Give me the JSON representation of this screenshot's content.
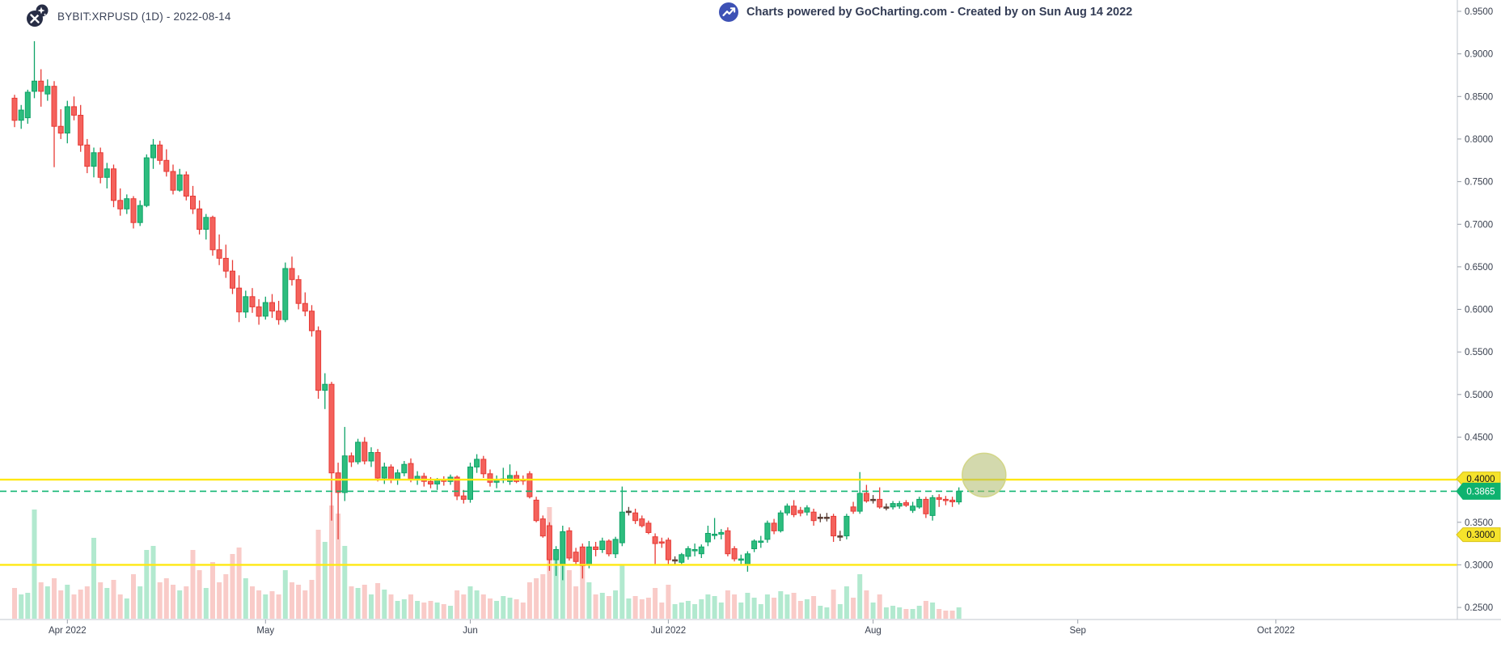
{
  "header": {
    "symbol_title": "BYBIT:XRPUSD (1D) - 2022-08-14",
    "watermark_text": "Charts powered by GoCharting.com - Created by  on Sun Aug 14 2022"
  },
  "colors": {
    "candle_up": "#2DBD7E",
    "candle_up_border": "#0FA368",
    "candle_down": "#F4625C",
    "candle_down_border": "#E73B36",
    "doji_dark": "#5D4037",
    "vol_up": "#B2E9CF",
    "vol_down": "#F9CBC8",
    "level_yellow": "#FFE812",
    "tag_yellow_bg": "#F6E32B",
    "tag_yellow_border": "#D9C416",
    "last_price_green": "#12B673",
    "tag_green_bg": "#0EB26F",
    "axis_text": "#3A4150",
    "axis_line": "#C2C7CF",
    "tick_line": "#9AA0AA",
    "header_text": "#333C55",
    "gocharting_blue": "#3D51B5",
    "logo_navy": "#272D45",
    "blob_fill": "rgba(174,186,106,0.55)",
    "blob_stroke": "rgba(208,212,128,0.9)"
  },
  "chart_data": {
    "type": "candlestick",
    "symbol": "BYBIT:XRPUSD",
    "timeframe": "1D",
    "chart_date": "2022-08-14",
    "start_date": "2022-03-24",
    "last_price": "0.3865",
    "price_axis": {
      "min": 0.25,
      "max": 0.95,
      "step": 0.05,
      "tick_labels": [
        "0.9500",
        "0.9000",
        "0.8500",
        "0.8000",
        "0.7500",
        "0.7000",
        "0.6500",
        "0.6000",
        "0.5500",
        "0.5000",
        "0.4500",
        "0.4000",
        "0.3500",
        "0.3000",
        "0.2500"
      ]
    },
    "time_axis": {
      "labels": [
        {
          "text": "Apr 2022",
          "day": 8
        },
        {
          "text": "May",
          "day": 38
        },
        {
          "text": "Jun",
          "day": 69
        },
        {
          "text": "Jul 2022",
          "day": 99
        },
        {
          "text": "Aug",
          "day": 130
        },
        {
          "text": "Sep",
          "day": 161
        },
        {
          "text": "Oct 2022",
          "day": 191
        }
      ]
    },
    "levels": [
      {
        "name": "resistance",
        "price": 0.4,
        "style": "solid",
        "color_key": "level_yellow",
        "tag": "0.4000",
        "tag_price": 0.401,
        "tag_kind": "yellow"
      },
      {
        "name": "support",
        "price": 0.3,
        "style": "solid",
        "color_key": "level_yellow",
        "tag": "0.3000",
        "tag_price": 0.3355,
        "tag_kind": "yellow"
      },
      {
        "name": "last-price",
        "price": 0.3865,
        "style": "dashed",
        "color_key": "last_price_green",
        "tag": "0.3865",
        "tag_price": 0.3865,
        "tag_kind": "green"
      }
    ],
    "highlight_circle": {
      "day_center": 146.8,
      "price_center": 0.4055,
      "radius_px": 27
    },
    "candles": [
      [
        0.848,
        0.852,
        0.814,
        0.822,
        38
      ],
      [
        0.822,
        0.84,
        0.812,
        0.834,
        30
      ],
      [
        0.825,
        0.858,
        0.818,
        0.855,
        32
      ],
      [
        0.856,
        0.915,
        0.848,
        0.868,
        135
      ],
      [
        0.868,
        0.882,
        0.838,
        0.856,
        45
      ],
      [
        0.853,
        0.87,
        0.845,
        0.862,
        40
      ],
      [
        0.862,
        0.868,
        0.767,
        0.815,
        50
      ],
      [
        0.815,
        0.835,
        0.8,
        0.807,
        35
      ],
      [
        0.807,
        0.845,
        0.795,
        0.838,
        42
      ],
      [
        0.838,
        0.85,
        0.822,
        0.828,
        30
      ],
      [
        0.828,
        0.84,
        0.785,
        0.793,
        36
      ],
      [
        0.793,
        0.8,
        0.76,
        0.768,
        40
      ],
      [
        0.768,
        0.79,
        0.755,
        0.784,
        100
      ],
      [
        0.784,
        0.79,
        0.748,
        0.755,
        45
      ],
      [
        0.755,
        0.772,
        0.742,
        0.765,
        38
      ],
      [
        0.765,
        0.77,
        0.72,
        0.728,
        48
      ],
      [
        0.728,
        0.742,
        0.71,
        0.718,
        30
      ],
      [
        0.718,
        0.735,
        0.712,
        0.73,
        25
      ],
      [
        0.73,
        0.733,
        0.695,
        0.702,
        55
      ],
      [
        0.702,
        0.728,
        0.698,
        0.722,
        40
      ],
      [
        0.722,
        0.782,
        0.72,
        0.778,
        85
      ],
      [
        0.778,
        0.8,
        0.765,
        0.793,
        90
      ],
      [
        0.793,
        0.798,
        0.77,
        0.775,
        45
      ],
      [
        0.775,
        0.788,
        0.756,
        0.762,
        50
      ],
      [
        0.762,
        0.77,
        0.735,
        0.74,
        42
      ],
      [
        0.74,
        0.765,
        0.738,
        0.758,
        35
      ],
      [
        0.758,
        0.762,
        0.728,
        0.733,
        40
      ],
      [
        0.733,
        0.745,
        0.712,
        0.718,
        85
      ],
      [
        0.718,
        0.728,
        0.688,
        0.694,
        60
      ],
      [
        0.694,
        0.712,
        0.682,
        0.708,
        38
      ],
      [
        0.708,
        0.71,
        0.663,
        0.67,
        70
      ],
      [
        0.67,
        0.688,
        0.652,
        0.66,
        45
      ],
      [
        0.66,
        0.676,
        0.637,
        0.645,
        55
      ],
      [
        0.645,
        0.658,
        0.618,
        0.625,
        80
      ],
      [
        0.625,
        0.64,
        0.585,
        0.597,
        88
      ],
      [
        0.597,
        0.622,
        0.59,
        0.615,
        50
      ],
      [
        0.615,
        0.625,
        0.596,
        0.603,
        40
      ],
      [
        0.603,
        0.612,
        0.582,
        0.592,
        35
      ],
      [
        0.592,
        0.615,
        0.588,
        0.608,
        30
      ],
      [
        0.608,
        0.618,
        0.59,
        0.598,
        34
      ],
      [
        0.598,
        0.61,
        0.582,
        0.588,
        30
      ],
      [
        0.588,
        0.655,
        0.585,
        0.648,
        60
      ],
      [
        0.648,
        0.662,
        0.628,
        0.635,
        45
      ],
      [
        0.635,
        0.64,
        0.6,
        0.607,
        42
      ],
      [
        0.607,
        0.62,
        0.592,
        0.598,
        35
      ],
      [
        0.598,
        0.605,
        0.568,
        0.575,
        48
      ],
      [
        0.575,
        0.58,
        0.495,
        0.505,
        110
      ],
      [
        0.505,
        0.525,
        0.483,
        0.512,
        95
      ],
      [
        0.512,
        0.515,
        0.352,
        0.408,
        140
      ],
      [
        0.408,
        0.42,
        0.33,
        0.385,
        130
      ],
      [
        0.385,
        0.462,
        0.375,
        0.428,
        90
      ],
      [
        0.428,
        0.432,
        0.415,
        0.421,
        40
      ],
      [
        0.421,
        0.448,
        0.418,
        0.444,
        38
      ],
      [
        0.444,
        0.45,
        0.418,
        0.422,
        42
      ],
      [
        0.422,
        0.438,
        0.415,
        0.432,
        30
      ],
      [
        0.432,
        0.436,
        0.398,
        0.402,
        44
      ],
      [
        0.402,
        0.42,
        0.395,
        0.415,
        36
      ],
      [
        0.415,
        0.418,
        0.396,
        0.4,
        30
      ],
      [
        0.4,
        0.412,
        0.394,
        0.408,
        22
      ],
      [
        0.408,
        0.422,
        0.404,
        0.418,
        24
      ],
      [
        0.419,
        0.425,
        0.397,
        0.401,
        30
      ],
      [
        0.401,
        0.41,
        0.394,
        0.404,
        22
      ],
      [
        0.404,
        0.408,
        0.392,
        0.398,
        20
      ],
      [
        0.398,
        0.403,
        0.39,
        0.395,
        22
      ],
      [
        0.395,
        0.402,
        0.388,
        0.4,
        20
      ],
      [
        0.4,
        0.404,
        0.393,
        0.398,
        18
      ],
      [
        0.398,
        0.406,
        0.394,
        0.403,
        16
      ],
      [
        0.403,
        0.405,
        0.376,
        0.381,
        35
      ],
      [
        0.381,
        0.388,
        0.372,
        0.377,
        30
      ],
      [
        0.377,
        0.42,
        0.373,
        0.415,
        40
      ],
      [
        0.415,
        0.43,
        0.408,
        0.424,
        35
      ],
      [
        0.424,
        0.428,
        0.402,
        0.407,
        30
      ],
      [
        0.407,
        0.412,
        0.392,
        0.397,
        25
      ],
      [
        0.397,
        0.405,
        0.39,
        0.4,
        22
      ],
      [
        0.4,
        0.414,
        0.396,
        0.401,
        28
      ],
      [
        0.398,
        0.418,
        0.394,
        0.405,
        26
      ],
      [
        0.405,
        0.41,
        0.396,
        0.398,
        24
      ],
      [
        0.4,
        0.405,
        0.394,
        0.399,
        20
      ],
      [
        0.407,
        0.41,
        0.378,
        0.38,
        45
      ],
      [
        0.376,
        0.38,
        0.35,
        0.352,
        50
      ],
      [
        0.354,
        0.358,
        0.332,
        0.334,
        55
      ],
      [
        0.346,
        0.35,
        0.293,
        0.306,
        138
      ],
      [
        0.306,
        0.322,
        0.287,
        0.318,
        80
      ],
      [
        0.3,
        0.346,
        0.282,
        0.339,
        90
      ],
      [
        0.34,
        0.344,
        0.305,
        0.308,
        60
      ],
      [
        0.315,
        0.32,
        0.3,
        0.304,
        40
      ],
      [
        0.321,
        0.325,
        0.284,
        0.299,
        65
      ],
      [
        0.3,
        0.328,
        0.296,
        0.321,
        45
      ],
      [
        0.321,
        0.327,
        0.31,
        0.318,
        30
      ],
      [
        0.318,
        0.332,
        0.314,
        0.328,
        32
      ],
      [
        0.328,
        0.33,
        0.31,
        0.313,
        28
      ],
      [
        0.313,
        0.333,
        0.308,
        0.33,
        35
      ],
      [
        0.326,
        0.392,
        0.322,
        0.362,
        67
      ],
      [
        0.362,
        0.368,
        0.358,
        0.363,
        25,
        1
      ],
      [
        0.361,
        0.366,
        0.348,
        0.352,
        28
      ],
      [
        0.354,
        0.358,
        0.344,
        0.346,
        24
      ],
      [
        0.349,
        0.352,
        0.336,
        0.338,
        26
      ],
      [
        0.333,
        0.337,
        0.299,
        0.325,
        38
      ],
      [
        0.327,
        0.332,
        0.32,
        0.326,
        20
      ],
      [
        0.329,
        0.332,
        0.299,
        0.306,
        42
      ],
      [
        0.306,
        0.31,
        0.3,
        0.306,
        18,
        1
      ],
      [
        0.303,
        0.314,
        0.3,
        0.312,
        20
      ],
      [
        0.31,
        0.322,
        0.306,
        0.319,
        22
      ],
      [
        0.318,
        0.325,
        0.31,
        0.318,
        18
      ],
      [
        0.313,
        0.324,
        0.308,
        0.321,
        24
      ],
      [
        0.327,
        0.346,
        0.322,
        0.337,
        30
      ],
      [
        0.336,
        0.355,
        0.33,
        0.336,
        28
      ],
      [
        0.336,
        0.342,
        0.33,
        0.338,
        20
      ],
      [
        0.34,
        0.344,
        0.31,
        0.313,
        35
      ],
      [
        0.319,
        0.322,
        0.304,
        0.307,
        30
      ],
      [
        0.307,
        0.312,
        0.3,
        0.307,
        20
      ],
      [
        0.301,
        0.316,
        0.292,
        0.313,
        32
      ],
      [
        0.319,
        0.33,
        0.315,
        0.328,
        26
      ],
      [
        0.328,
        0.334,
        0.32,
        0.328,
        18
      ],
      [
        0.33,
        0.352,
        0.326,
        0.349,
        30
      ],
      [
        0.349,
        0.354,
        0.336,
        0.34,
        26
      ],
      [
        0.34,
        0.364,
        0.338,
        0.361,
        34
      ],
      [
        0.361,
        0.372,
        0.358,
        0.369,
        30
      ],
      [
        0.369,
        0.376,
        0.356,
        0.359,
        32
      ],
      [
        0.364,
        0.368,
        0.357,
        0.361,
        22
      ],
      [
        0.362,
        0.37,
        0.358,
        0.367,
        24
      ],
      [
        0.362,
        0.366,
        0.346,
        0.352,
        28
      ],
      [
        0.356,
        0.36,
        0.35,
        0.356,
        16,
        1
      ],
      [
        0.356,
        0.361,
        0.351,
        0.356,
        14,
        1
      ],
      [
        0.357,
        0.36,
        0.327,
        0.334,
        36
      ],
      [
        0.333,
        0.34,
        0.328,
        0.334,
        18,
        1
      ],
      [
        0.334,
        0.36,
        0.33,
        0.357,
        40
      ],
      [
        0.368,
        0.374,
        0.36,
        0.363,
        26
      ],
      [
        0.363,
        0.409,
        0.36,
        0.384,
        55
      ],
      [
        0.384,
        0.394,
        0.373,
        0.375,
        35
      ],
      [
        0.376,
        0.382,
        0.372,
        0.377,
        20,
        1
      ],
      [
        0.377,
        0.391,
        0.366,
        0.368,
        30
      ],
      [
        0.368,
        0.372,
        0.364,
        0.368,
        14,
        1
      ],
      [
        0.368,
        0.375,
        0.365,
        0.372,
        16
      ],
      [
        0.369,
        0.375,
        0.366,
        0.372,
        14
      ],
      [
        0.373,
        0.376,
        0.368,
        0.37,
        12
      ],
      [
        0.364,
        0.374,
        0.361,
        0.369,
        12
      ],
      [
        0.368,
        0.38,
        0.366,
        0.377,
        16
      ],
      [
        0.377,
        0.38,
        0.355,
        0.36,
        22
      ],
      [
        0.358,
        0.382,
        0.352,
        0.379,
        20
      ],
      [
        0.379,
        0.383,
        0.368,
        0.377,
        12
      ],
      [
        0.377,
        0.381,
        0.37,
        0.376,
        10
      ],
      [
        0.376,
        0.38,
        0.368,
        0.374,
        10
      ],
      [
        0.374,
        0.391,
        0.371,
        0.3865,
        14
      ]
    ]
  }
}
